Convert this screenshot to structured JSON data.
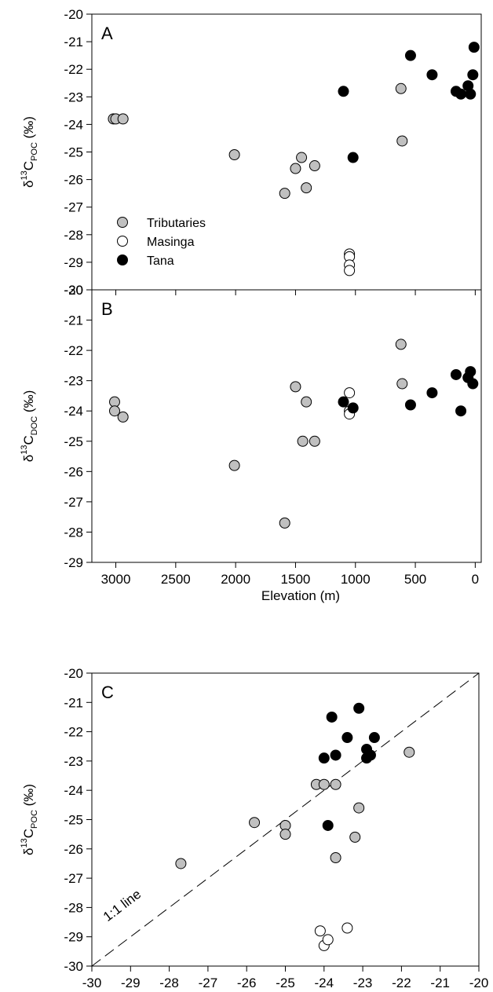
{
  "legend": {
    "entries": [
      {
        "name": "Tributaries",
        "color": "#c0c0c0"
      },
      {
        "name": "Masinga",
        "color": "#ffffff"
      },
      {
        "name": "Tana",
        "color": "#000000"
      }
    ],
    "placement": "bottom-left of panel A"
  },
  "chart_data": [
    {
      "type": "scatter",
      "panel": "A",
      "xlabel": "",
      "ylabel": "δ13CPOC (‰)",
      "ylabel_parts": {
        "prefix": "δ",
        "sup": "13",
        "main": "C",
        "sub": "POC",
        "suffix": " (‰)"
      },
      "xlim": [
        3200,
        -50
      ],
      "ylim": [
        -30,
        -20
      ],
      "xticks": [
        3000,
        2500,
        2000,
        1500,
        1000,
        500,
        0
      ],
      "xtick_labels_shown": false,
      "yticks": [
        -30,
        -29,
        -28,
        -27,
        -26,
        -25,
        -24,
        -23,
        -22,
        -21,
        -20
      ],
      "series": [
        {
          "name": "Tributaries",
          "points": [
            [
              3020,
              -23.8
            ],
            [
              3000,
              -23.8
            ],
            [
              2940,
              -23.8
            ],
            [
              2010,
              -25.1
            ],
            [
              1590,
              -26.5
            ],
            [
              1500,
              -25.6
            ],
            [
              1450,
              -25.2
            ],
            [
              1410,
              -26.3
            ],
            [
              1340,
              -25.5
            ],
            [
              620,
              -22.7
            ],
            [
              610,
              -24.6
            ]
          ]
        },
        {
          "name": "Masinga",
          "points": [
            [
              1050,
              -28.7
            ],
            [
              1050,
              -28.8
            ],
            [
              1050,
              -29.1
            ],
            [
              1050,
              -29.3
            ]
          ]
        },
        {
          "name": "Tana",
          "points": [
            [
              1100,
              -22.8
            ],
            [
              1020,
              -25.2
            ],
            [
              540,
              -21.5
            ],
            [
              360,
              -22.2
            ],
            [
              160,
              -22.8
            ],
            [
              120,
              -22.9
            ],
            [
              60,
              -22.6
            ],
            [
              40,
              -22.9
            ],
            [
              20,
              -22.2
            ],
            [
              10,
              -21.2
            ]
          ]
        }
      ]
    },
    {
      "type": "scatter",
      "panel": "B",
      "xlabel": "Elevation (m)",
      "ylabel": "δ13CDOC (‰)",
      "ylabel_parts": {
        "prefix": "δ",
        "sup": "13",
        "main": "C",
        "sub": "DOC",
        "suffix": " (‰)"
      },
      "xlim": [
        3200,
        -50
      ],
      "ylim": [
        -29,
        -20
      ],
      "xticks": [
        3000,
        2500,
        2000,
        1500,
        1000,
        500,
        0
      ],
      "yticks": [
        -29,
        -28,
        -27,
        -26,
        -25,
        -24,
        -23,
        -22,
        -21,
        -20
      ],
      "series": [
        {
          "name": "Tributaries",
          "points": [
            [
              3010,
              -23.7
            ],
            [
              3010,
              -24.0
            ],
            [
              2940,
              -24.2
            ],
            [
              2010,
              -25.8
            ],
            [
              1590,
              -27.7
            ],
            [
              1500,
              -23.2
            ],
            [
              1440,
              -25.0
            ],
            [
              1410,
              -23.7
            ],
            [
              1340,
              -25.0
            ],
            [
              620,
              -21.8
            ],
            [
              610,
              -23.1
            ]
          ]
        },
        {
          "name": "Masinga",
          "points": [
            [
              1050,
              -23.4
            ],
            [
              1050,
              -24.0
            ],
            [
              1050,
              -24.1
            ]
          ]
        },
        {
          "name": "Tana",
          "points": [
            [
              1100,
              -23.7
            ],
            [
              1020,
              -23.9
            ],
            [
              540,
              -23.8
            ],
            [
              360,
              -23.4
            ],
            [
              160,
              -22.8
            ],
            [
              120,
              -24.0
            ],
            [
              60,
              -22.9
            ],
            [
              40,
              -22.7
            ],
            [
              20,
              -23.1
            ]
          ]
        }
      ]
    },
    {
      "type": "scatter",
      "panel": "C",
      "xlabel": "δ13CDOC (‰)",
      "xlabel_parts": {
        "prefix": "δ",
        "sup": "13",
        "main": "C",
        "sub": "DOC",
        "suffix": " (‰)"
      },
      "ylabel": "δ13CPOC (‰)",
      "ylabel_parts": {
        "prefix": "δ",
        "sup": "13",
        "main": "C",
        "sub": "POC",
        "suffix": " (‰)"
      },
      "xlim": [
        -30,
        -20
      ],
      "ylim": [
        -30,
        -20
      ],
      "xticks": [
        -30,
        -29,
        -28,
        -27,
        -26,
        -25,
        -24,
        -23,
        -22,
        -21,
        -20
      ],
      "yticks": [
        -30,
        -29,
        -28,
        -27,
        -26,
        -25,
        -24,
        -23,
        -22,
        -21,
        -20
      ],
      "reference_line": {
        "label": "1:1 line",
        "from": [
          -30,
          -30
        ],
        "to": [
          -20,
          -20
        ],
        "style": "dashed"
      },
      "series": [
        {
          "name": "Tributaries",
          "points": [
            [
              -27.7,
              -26.5
            ],
            [
              -25.8,
              -25.1
            ],
            [
              -25.0,
              -25.2
            ],
            [
              -25.0,
              -25.5
            ],
            [
              -24.2,
              -23.8
            ],
            [
              -24.0,
              -23.8
            ],
            [
              -23.7,
              -23.8
            ],
            [
              -23.7,
              -26.3
            ],
            [
              -23.2,
              -25.6
            ],
            [
              -23.1,
              -24.6
            ],
            [
              -21.8,
              -22.7
            ]
          ]
        },
        {
          "name": "Masinga",
          "points": [
            [
              -24.1,
              -28.8
            ],
            [
              -24.0,
              -29.3
            ],
            [
              -23.9,
              -29.1
            ],
            [
              -23.4,
              -28.7
            ]
          ]
        },
        {
          "name": "Tana",
          "points": [
            [
              -23.8,
              -21.5
            ],
            [
              -23.7,
              -22.8
            ],
            [
              -24.0,
              -22.9
            ],
            [
              -23.4,
              -22.2
            ],
            [
              -23.9,
              -25.2
            ],
            [
              -23.1,
              -21.2
            ],
            [
              -22.9,
              -22.6
            ],
            [
              -22.8,
              -22.8
            ],
            [
              -22.9,
              -22.9
            ],
            [
              -22.7,
              -22.2
            ]
          ]
        }
      ]
    }
  ]
}
